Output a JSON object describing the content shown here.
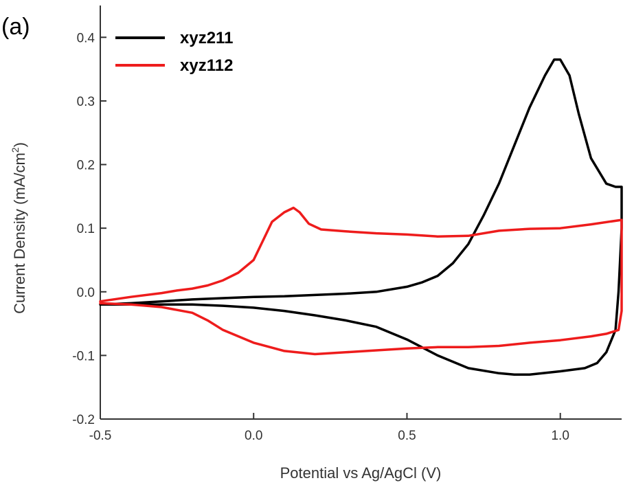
{
  "panel_label": "(a)",
  "chart_data": {
    "type": "line",
    "xlabel": "Potential vs Ag/AgCl (V)",
    "ylabel_main": "Current Density (mA/cm",
    "ylabel_sup": "2",
    "ylabel_end": ")",
    "xlim": [
      -0.5,
      1.2
    ],
    "ylim": [
      -0.2,
      0.45
    ],
    "x_ticks": [
      -0.5,
      0.0,
      0.5,
      1.0
    ],
    "x_tick_labels": [
      "-0.5",
      "0.0",
      "0.5",
      "1.0"
    ],
    "y_ticks": [
      -0.2,
      -0.1,
      0.0,
      0.1,
      0.2,
      0.3,
      0.4
    ],
    "y_tick_labels": [
      "-0.2",
      "-0.1",
      "0.0",
      "0.1",
      "0.2",
      "0.3",
      "0.4"
    ],
    "grid": false,
    "legend_position": "top-left",
    "series": [
      {
        "name": "xyz211",
        "color": "#000000",
        "points": [
          [
            -0.5,
            -0.02
          ],
          [
            -0.4,
            -0.018
          ],
          [
            -0.3,
            -0.015
          ],
          [
            -0.2,
            -0.012
          ],
          [
            -0.1,
            -0.01
          ],
          [
            0.0,
            -0.008
          ],
          [
            0.1,
            -0.007
          ],
          [
            0.2,
            -0.005
          ],
          [
            0.3,
            -0.003
          ],
          [
            0.4,
            0.0
          ],
          [
            0.5,
            0.008
          ],
          [
            0.55,
            0.015
          ],
          [
            0.6,
            0.025
          ],
          [
            0.65,
            0.045
          ],
          [
            0.7,
            0.075
          ],
          [
            0.75,
            0.12
          ],
          [
            0.8,
            0.17
          ],
          [
            0.85,
            0.23
          ],
          [
            0.9,
            0.29
          ],
          [
            0.95,
            0.34
          ],
          [
            0.98,
            0.365
          ],
          [
            1.0,
            0.365
          ],
          [
            1.03,
            0.34
          ],
          [
            1.06,
            0.28
          ],
          [
            1.1,
            0.21
          ],
          [
            1.15,
            0.17
          ],
          [
            1.18,
            0.165
          ],
          [
            1.2,
            0.165
          ],
          [
            1.2,
            0.1
          ],
          [
            1.19,
            0.0
          ],
          [
            1.18,
            -0.06
          ],
          [
            1.15,
            -0.095
          ],
          [
            1.12,
            -0.112
          ],
          [
            1.08,
            -0.12
          ],
          [
            1.0,
            -0.125
          ],
          [
            0.9,
            -0.13
          ],
          [
            0.85,
            -0.13
          ],
          [
            0.8,
            -0.128
          ],
          [
            0.7,
            -0.12
          ],
          [
            0.6,
            -0.1
          ],
          [
            0.5,
            -0.075
          ],
          [
            0.4,
            -0.055
          ],
          [
            0.3,
            -0.045
          ],
          [
            0.2,
            -0.037
          ],
          [
            0.1,
            -0.03
          ],
          [
            0.0,
            -0.025
          ],
          [
            -0.1,
            -0.022
          ],
          [
            -0.2,
            -0.02
          ],
          [
            -0.3,
            -0.02
          ],
          [
            -0.4,
            -0.02
          ],
          [
            -0.5,
            -0.02
          ]
        ]
      },
      {
        "name": "xyz112",
        "color": "#ee1c1c",
        "points": [
          [
            -0.5,
            -0.015
          ],
          [
            -0.4,
            -0.008
          ],
          [
            -0.3,
            -0.002
          ],
          [
            -0.25,
            0.002
          ],
          [
            -0.2,
            0.005
          ],
          [
            -0.15,
            0.01
          ],
          [
            -0.1,
            0.018
          ],
          [
            -0.05,
            0.03
          ],
          [
            0.0,
            0.05
          ],
          [
            0.03,
            0.08
          ],
          [
            0.06,
            0.11
          ],
          [
            0.1,
            0.125
          ],
          [
            0.13,
            0.132
          ],
          [
            0.15,
            0.125
          ],
          [
            0.18,
            0.107
          ],
          [
            0.22,
            0.098
          ],
          [
            0.3,
            0.095
          ],
          [
            0.4,
            0.092
          ],
          [
            0.5,
            0.09
          ],
          [
            0.6,
            0.087
          ],
          [
            0.7,
            0.088
          ],
          [
            0.8,
            0.096
          ],
          [
            0.9,
            0.099
          ],
          [
            1.0,
            0.1
          ],
          [
            1.1,
            0.106
          ],
          [
            1.2,
            0.113
          ],
          [
            1.2,
            0.07
          ],
          [
            1.2,
            -0.03
          ],
          [
            1.19,
            -0.06
          ],
          [
            1.15,
            -0.066
          ],
          [
            1.1,
            -0.07
          ],
          [
            1.0,
            -0.076
          ],
          [
            0.9,
            -0.08
          ],
          [
            0.8,
            -0.085
          ],
          [
            0.7,
            -0.087
          ],
          [
            0.6,
            -0.087
          ],
          [
            0.5,
            -0.089
          ],
          [
            0.4,
            -0.092
          ],
          [
            0.3,
            -0.095
          ],
          [
            0.2,
            -0.098
          ],
          [
            0.1,
            -0.093
          ],
          [
            0.0,
            -0.08
          ],
          [
            -0.1,
            -0.06
          ],
          [
            -0.15,
            -0.045
          ],
          [
            -0.2,
            -0.033
          ],
          [
            -0.3,
            -0.024
          ],
          [
            -0.4,
            -0.02
          ],
          [
            -0.5,
            -0.018
          ]
        ]
      }
    ]
  }
}
